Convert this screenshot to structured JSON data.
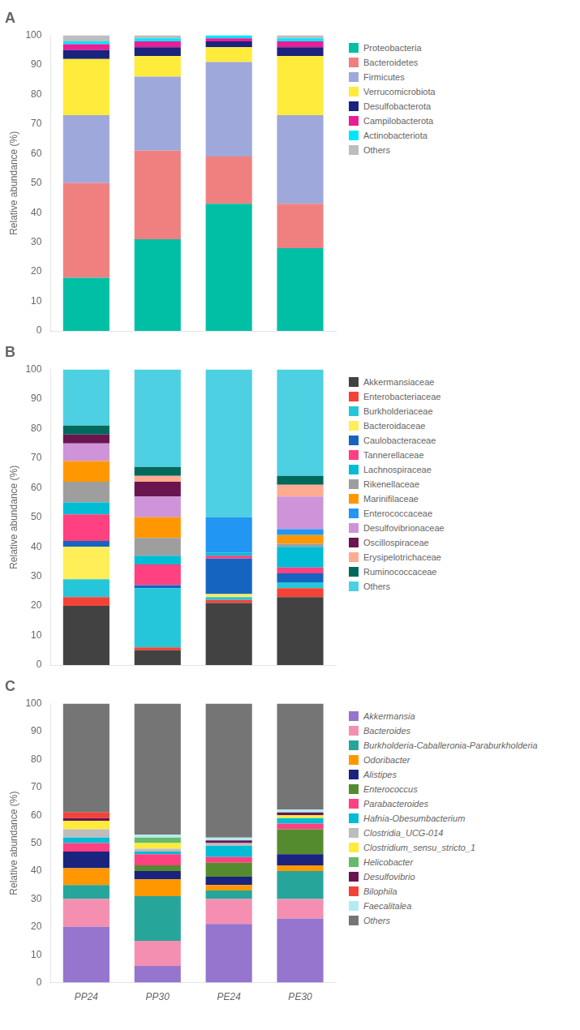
{
  "chart_data": [
    {
      "type": "bar",
      "title": "A",
      "categories": [
        "PP24",
        "PP30",
        "PE24",
        "PE30"
      ],
      "series": [
        {
          "name": "Proteobacteria",
          "color": "#00BFA5",
          "values": [
            18,
            31,
            43,
            28
          ]
        },
        {
          "name": "Bacteroidetes",
          "color": "#F08080",
          "values": [
            32,
            30,
            16,
            15
          ]
        },
        {
          "name": "Firmicutes",
          "color": "#9FA8DA",
          "values": [
            23,
            25,
            32,
            30
          ]
        },
        {
          "name": "Verrucomicrobiota",
          "color": "#FFEB3B",
          "values": [
            19,
            7,
            5,
            20
          ]
        },
        {
          "name": "Desulfobacterota",
          "color": "#1A237E",
          "values": [
            3,
            3,
            2,
            3
          ]
        },
        {
          "name": "Campilobacterota",
          "color": "#E91E96",
          "values": [
            2,
            2,
            1,
            2
          ]
        },
        {
          "name": "Actinobacteriota",
          "color": "#00E5FF",
          "values": [
            1,
            1,
            1,
            1
          ]
        },
        {
          "name": "Others",
          "color": "#BDBDBD",
          "values": [
            2,
            1,
            0,
            1
          ]
        }
      ],
      "ylim": [
        0,
        100
      ],
      "yticks": [
        0,
        10,
        20,
        30,
        40,
        50,
        60,
        70,
        80,
        90,
        100
      ],
      "y_label": "Relative abundance (%)",
      "stacked": true,
      "grid": false,
      "legend": "right",
      "tick_labels": "y"
    },
    {
      "type": "bar",
      "title": "B",
      "categories": [
        "PP24",
        "PP30",
        "PE24",
        "PE30"
      ],
      "series": [
        {
          "name": "Akkermansiaceae",
          "color": "#424242",
          "values": [
            20,
            5,
            21,
            23
          ]
        },
        {
          "name": "Enterobacteriaceae",
          "color": "#F44336",
          "values": [
            3,
            1,
            1,
            3
          ]
        },
        {
          "name": "Burkholderiaceae",
          "color": "#26C6DA",
          "values": [
            6,
            20,
            1,
            2
          ]
        },
        {
          "name": "Bacteroidaceae",
          "color": "#FFEE58",
          "values": [
            11,
            0,
            1,
            0
          ]
        },
        {
          "name": "Caulobacteraceae",
          "color": "#1565C0",
          "values": [
            2,
            1,
            12,
            3
          ]
        },
        {
          "name": "Tannerellaceae",
          "color": "#FF4081",
          "values": [
            9,
            7,
            1,
            2
          ]
        },
        {
          "name": "Lachnospiraceae",
          "color": "#00BCD4",
          "values": [
            4,
            3,
            1,
            7
          ]
        },
        {
          "name": "Rikenellaceae",
          "color": "#9E9E9E",
          "values": [
            7,
            6,
            0,
            1
          ]
        },
        {
          "name": "Marinifilaceae",
          "color": "#FF9800",
          "values": [
            7,
            7,
            0,
            3
          ]
        },
        {
          "name": "Enterococcaceae",
          "color": "#2196F3",
          "values": [
            0,
            0,
            12,
            2
          ]
        },
        {
          "name": "Desulfovibrionaceae",
          "color": "#CE93D8",
          "values": [
            6,
            7,
            0,
            11
          ]
        },
        {
          "name": "Oscillospiraceae",
          "color": "#6A1550",
          "values": [
            3,
            5,
            0,
            0
          ]
        },
        {
          "name": "Erysipelotrichaceae",
          "color": "#FFAB91",
          "values": [
            0,
            2,
            0,
            4
          ]
        },
        {
          "name": "Ruminococcaceae",
          "color": "#00695C",
          "values": [
            3,
            3,
            0,
            3
          ]
        },
        {
          "name": "Others",
          "color": "#4DD0E1",
          "values": [
            19,
            33,
            50,
            36
          ]
        }
      ],
      "ylim": [
        0,
        100
      ],
      "yticks": [
        0,
        10,
        20,
        30,
        40,
        50,
        60,
        70,
        80,
        90,
        100
      ],
      "y_label": "Relative abundance (%)",
      "stacked": true,
      "grid": false,
      "legend": "right",
      "tick_labels": "y"
    },
    {
      "type": "bar",
      "title": "C",
      "categories": [
        "PP24",
        "PP30",
        "PE24",
        "PE30"
      ],
      "series": [
        {
          "name": "Akkermansia",
          "color": "#9575CD",
          "values": [
            20,
            6,
            21,
            23
          ]
        },
        {
          "name": "Bacteroides",
          "color": "#F48FB1",
          "values": [
            10,
            9,
            9,
            7
          ]
        },
        {
          "name": "Burkholderia-Caballeronia-Paraburkholderia",
          "color": "#26A69A",
          "values": [
            5,
            16,
            3,
            10
          ]
        },
        {
          "name": "Odoribacter",
          "color": "#FF9800",
          "values": [
            6,
            6,
            2,
            2
          ]
        },
        {
          "name": "Alistipes",
          "color": "#1A237E",
          "values": [
            6,
            3,
            3,
            4
          ]
        },
        {
          "name": "Enterococcus",
          "color": "#558B2F",
          "values": [
            0,
            2,
            5,
            9
          ]
        },
        {
          "name": "Parabacteroides",
          "color": "#FF4081",
          "values": [
            3,
            4,
            2,
            2
          ]
        },
        {
          "name": "Hafnia-Obesumbacterium",
          "color": "#00BCD4",
          "values": [
            2,
            1,
            4,
            2
          ]
        },
        {
          "name": "Clostridia_UCG-014",
          "color": "#BDBDBD",
          "values": [
            3,
            1,
            1,
            0
          ]
        },
        {
          "name": "Clostridium_sensu_stricto_1",
          "color": "#FFEB3B",
          "values": [
            3,
            2,
            0,
            1
          ]
        },
        {
          "name": "Helicobacter",
          "color": "#66BB6A",
          "values": [
            0,
            2,
            0,
            0
          ]
        },
        {
          "name": "Desulfovibrio",
          "color": "#6A1550",
          "values": [
            1,
            0,
            1,
            1
          ]
        },
        {
          "name": "Bilophila",
          "color": "#F44336",
          "values": [
            2,
            0,
            0,
            0
          ]
        },
        {
          "name": "Faecalitalea",
          "color": "#B2EBF2",
          "values": [
            0,
            1,
            1,
            1
          ]
        },
        {
          "name": "Others",
          "color": "#757575",
          "values": [
            39,
            47,
            48,
            38
          ]
        }
      ],
      "ylim": [
        0,
        100
      ],
      "yticks": [
        0,
        10,
        20,
        30,
        40,
        50,
        60,
        70,
        80,
        90,
        100
      ],
      "y_label": "Relative abundance (%)",
      "stacked": true,
      "grid": false,
      "legend": "right"
    }
  ]
}
